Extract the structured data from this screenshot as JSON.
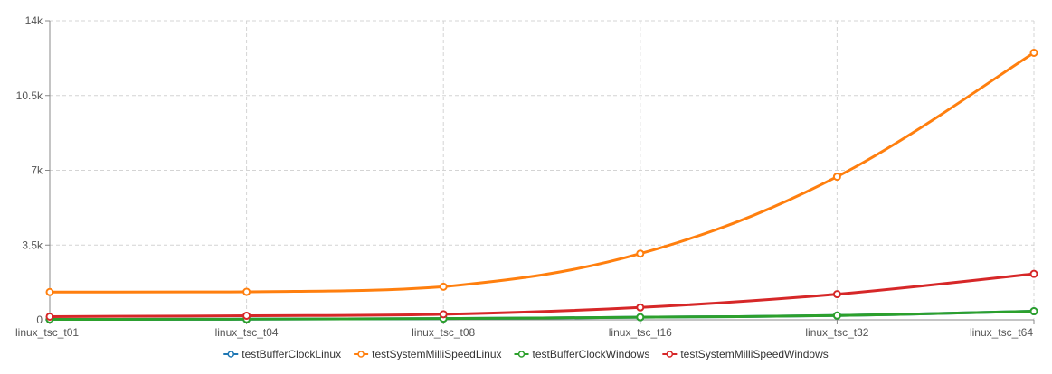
{
  "chart_data": {
    "type": "line",
    "categories": [
      "linux_tsc_t01",
      "linux_tsc_t04",
      "linux_tsc_t08",
      "linux_tsc_t16",
      "linux_tsc_t32",
      "linux_tsc_t64"
    ],
    "ylim": [
      0,
      14000
    ],
    "yticks": [
      0,
      3500,
      7000,
      10500,
      14000
    ],
    "ytick_labels": [
      "0",
      "3.5k",
      "7k",
      "10.5k",
      "14k"
    ],
    "grid": true,
    "legend_position": "bottom",
    "series": [
      {
        "name": "testBufferClockLinux",
        "color": "#1f77b4",
        "values": [
          20,
          30,
          60,
          120,
          200,
          400
        ]
      },
      {
        "name": "testSystemMilliSpeedLinux",
        "color": "#ff7f0e",
        "values": [
          1300,
          1310,
          1550,
          3100,
          6700,
          12500
        ]
      },
      {
        "name": "testBufferClockWindows",
        "color": "#2ca02c",
        "values": [
          20,
          30,
          60,
          120,
          200,
          400
        ]
      },
      {
        "name": "testSystemMilliSpeedWindows",
        "color": "#d62728",
        "values": [
          150,
          190,
          260,
          580,
          1200,
          2150
        ]
      }
    ]
  }
}
